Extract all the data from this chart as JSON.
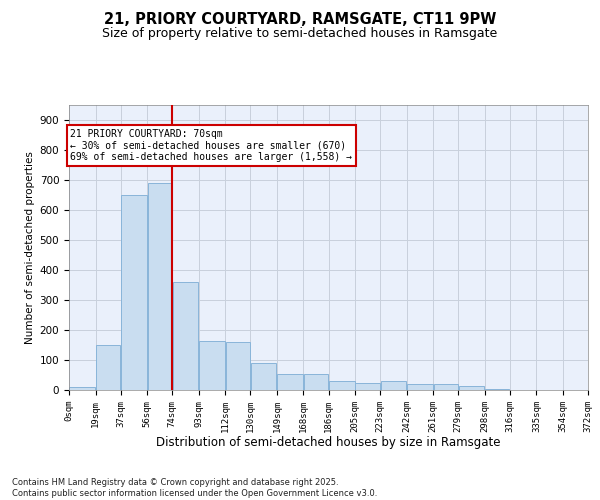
{
  "title_line1": "21, PRIORY COURTYARD, RAMSGATE, CT11 9PW",
  "title_line2": "Size of property relative to semi-detached houses in Ramsgate",
  "xlabel": "Distribution of semi-detached houses by size in Ramsgate",
  "ylabel": "Number of semi-detached properties",
  "annotation_text": "21 PRIORY COURTYARD: 70sqm\n← 30% of semi-detached houses are smaller (670)\n69% of semi-detached houses are larger (1,558) →",
  "bin_labels": [
    "0sqm",
    "19sqm",
    "37sqm",
    "56sqm",
    "74sqm",
    "93sqm",
    "112sqm",
    "130sqm",
    "149sqm",
    "168sqm",
    "186sqm",
    "205sqm",
    "223sqm",
    "242sqm",
    "261sqm",
    "279sqm",
    "298sqm",
    "316sqm",
    "335sqm",
    "354sqm",
    "372sqm"
  ],
  "bin_edges": [
    0,
    19,
    37,
    56,
    74,
    93,
    112,
    130,
    149,
    168,
    186,
    205,
    223,
    242,
    261,
    279,
    298,
    316,
    335,
    354,
    372
  ],
  "bar_heights": [
    10,
    150,
    650,
    690,
    360,
    165,
    160,
    90,
    55,
    55,
    30,
    25,
    30,
    20,
    20,
    15,
    5,
    0,
    0,
    0
  ],
  "bar_color": "#c9ddf0",
  "bar_edge_color": "#89b4d9",
  "vline_x": 74,
  "vline_color": "#cc0000",
  "grid_color": "#c8d0dc",
  "ylim_max": 950,
  "yticks": [
    0,
    100,
    200,
    300,
    400,
    500,
    600,
    700,
    800,
    900
  ],
  "bg_color": "#eaf0fb",
  "footer_text": "Contains HM Land Registry data © Crown copyright and database right 2025.\nContains public sector information licensed under the Open Government Licence v3.0.",
  "title_fontsize": 10.5,
  "subtitle_fontsize": 9
}
